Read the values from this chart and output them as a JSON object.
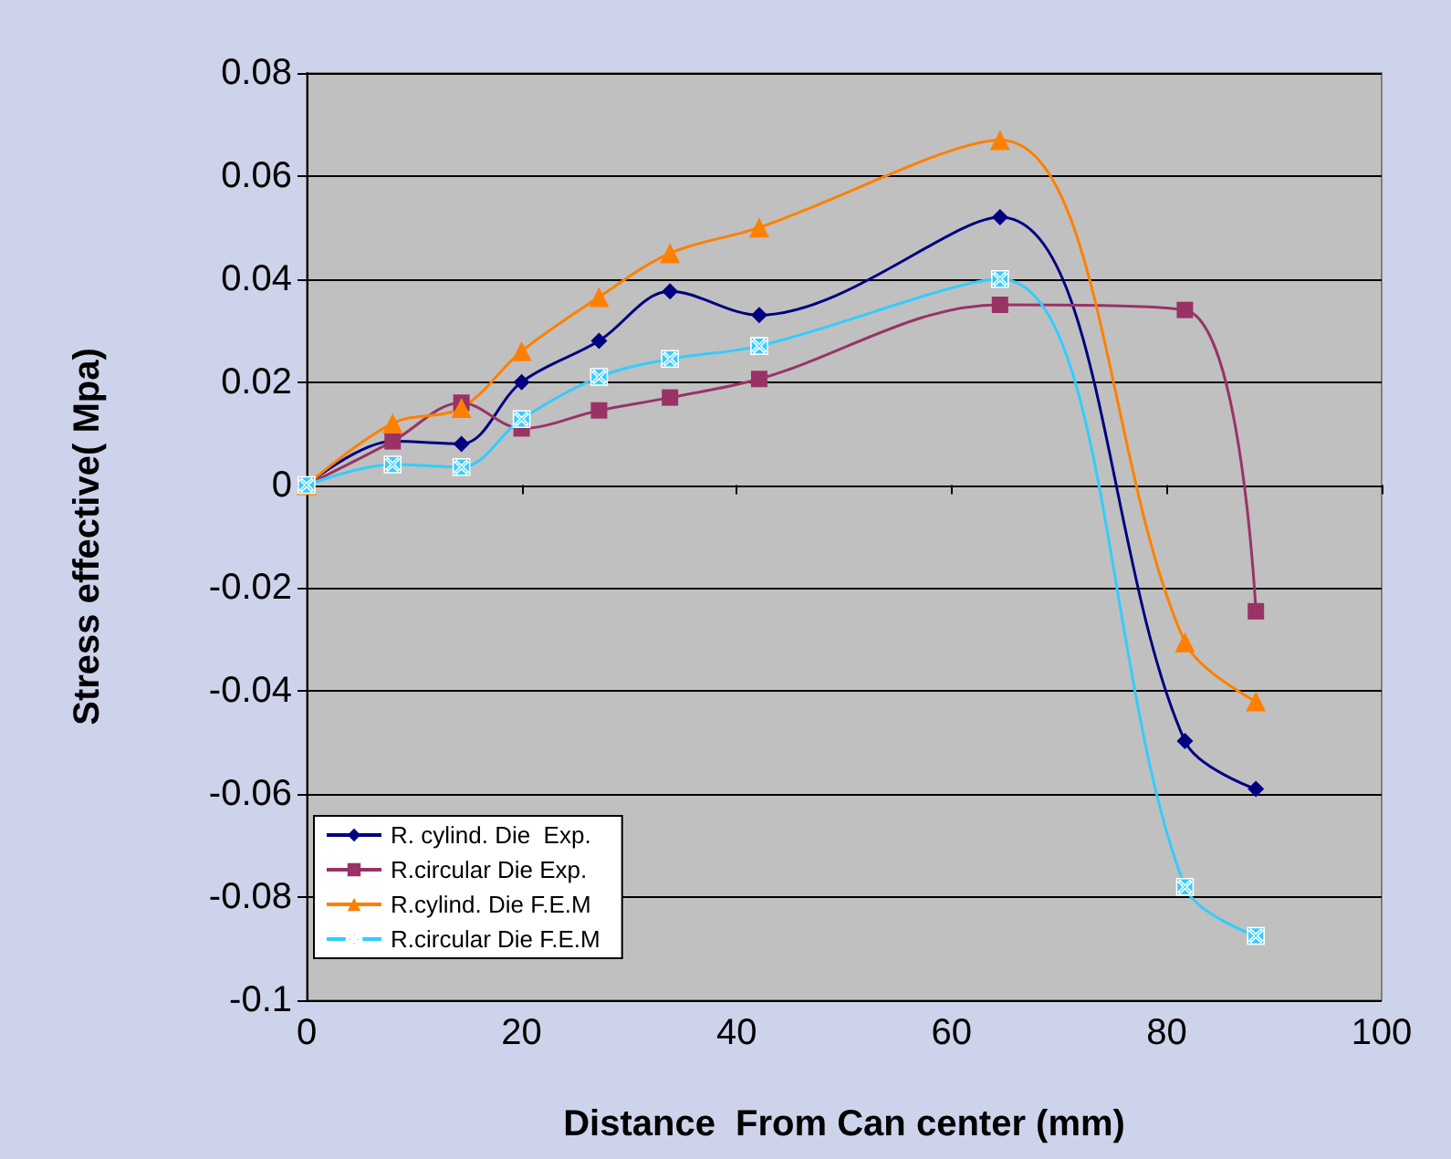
{
  "chart_data": {
    "type": "line",
    "xlabel": "Distance  From Can center (mm)",
    "ylabel": "Stress effective( Mpa)",
    "x": [
      0,
      8,
      14.4,
      20,
      27.2,
      33.8,
      42.1,
      64.5,
      81.7,
      88.3
    ],
    "series": [
      {
        "name": "R. cylind. Die  Exp.",
        "color": "#000080",
        "marker": "diamond",
        "values": [
          0,
          0.0085,
          0.008,
          0.02,
          0.028,
          0.0376,
          0.033,
          0.052,
          -0.0497,
          -0.059
        ]
      },
      {
        "name": "R.circular Die Exp.",
        "color": "#993366",
        "marker": "square",
        "values": [
          0,
          0.0085,
          0.016,
          0.011,
          0.0145,
          0.017,
          0.0206,
          0.035,
          0.034,
          -0.0245
        ]
      },
      {
        "name": "R.cylind. Die F.E.M",
        "color": "#ff8000",
        "marker": "triangle",
        "values": [
          0,
          0.012,
          0.015,
          0.026,
          0.0365,
          0.045,
          0.05,
          0.067,
          -0.0305,
          -0.042
        ]
      },
      {
        "name": "R.circular Die F.E.M",
        "color": "#33ccff",
        "marker": "cross",
        "values": [
          0,
          0.004,
          0.0035,
          0.0128,
          0.021,
          0.0245,
          0.027,
          0.04,
          -0.078,
          -0.0875
        ]
      }
    ],
    "xlim": [
      0,
      100
    ],
    "xticks": [
      0,
      20,
      40,
      60,
      80,
      100
    ],
    "ylim": [
      -0.1,
      0.08
    ],
    "yticks": [
      -0.1,
      -0.08,
      -0.06,
      -0.04,
      -0.02,
      0,
      0.02,
      0.04,
      0.06,
      0.08
    ],
    "grid": "y",
    "legend": "bottom left",
    "line_style": "solid"
  }
}
